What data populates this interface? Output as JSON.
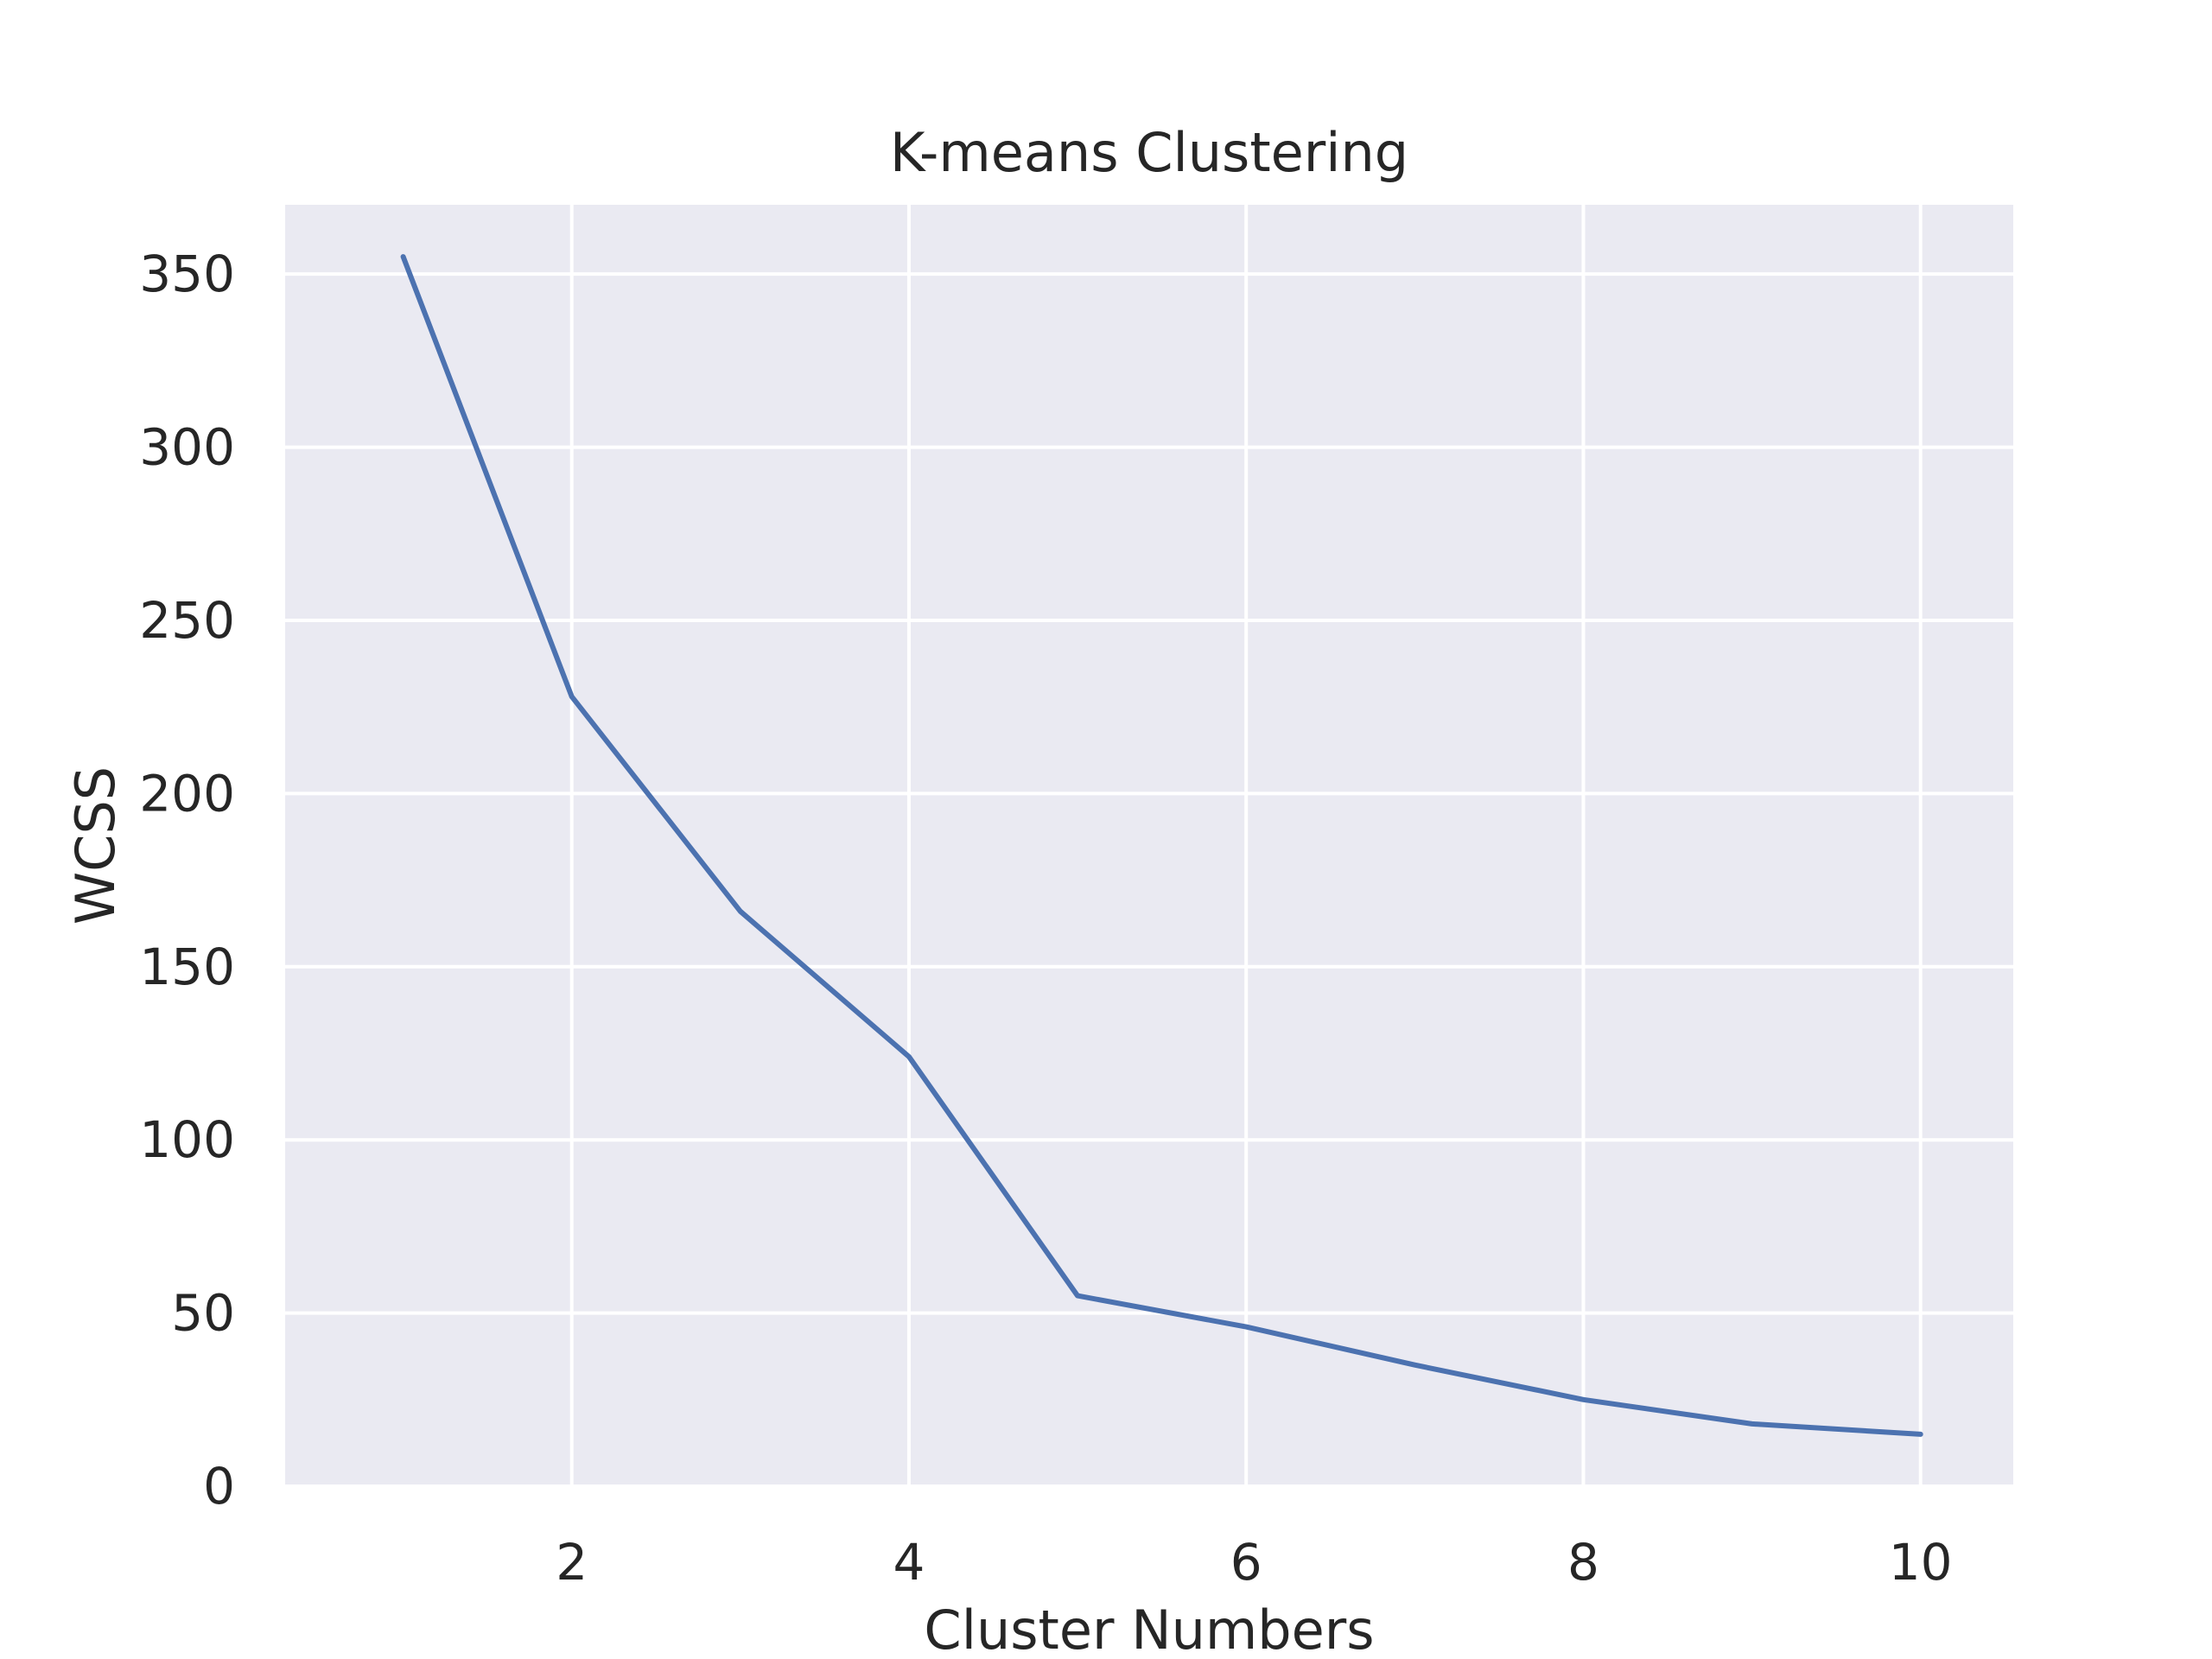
{
  "chart_data": {
    "type": "line",
    "title": "K-means Clustering",
    "xlabel": "Cluster Numbers",
    "ylabel": "WCSS",
    "xlim": [
      0.3,
      10.55
    ],
    "ylim": [
      0,
      370
    ],
    "xticks": [
      2,
      4,
      6,
      8,
      10
    ],
    "yticks": [
      0,
      50,
      100,
      150,
      200,
      250,
      300,
      350
    ],
    "grid": true,
    "style": "seaborn darkgrid",
    "colors": {
      "plot_background": "#eaeaf2",
      "grid": "#ffffff",
      "line": "#4c72b0",
      "text": "#262626"
    },
    "series": [
      {
        "x": [
          1,
          2,
          3,
          4,
          5,
          6,
          7,
          8,
          9,
          10
        ],
        "y": [
          355,
          228,
          166,
          124,
          55,
          46,
          35,
          25,
          18,
          15
        ]
      }
    ]
  }
}
